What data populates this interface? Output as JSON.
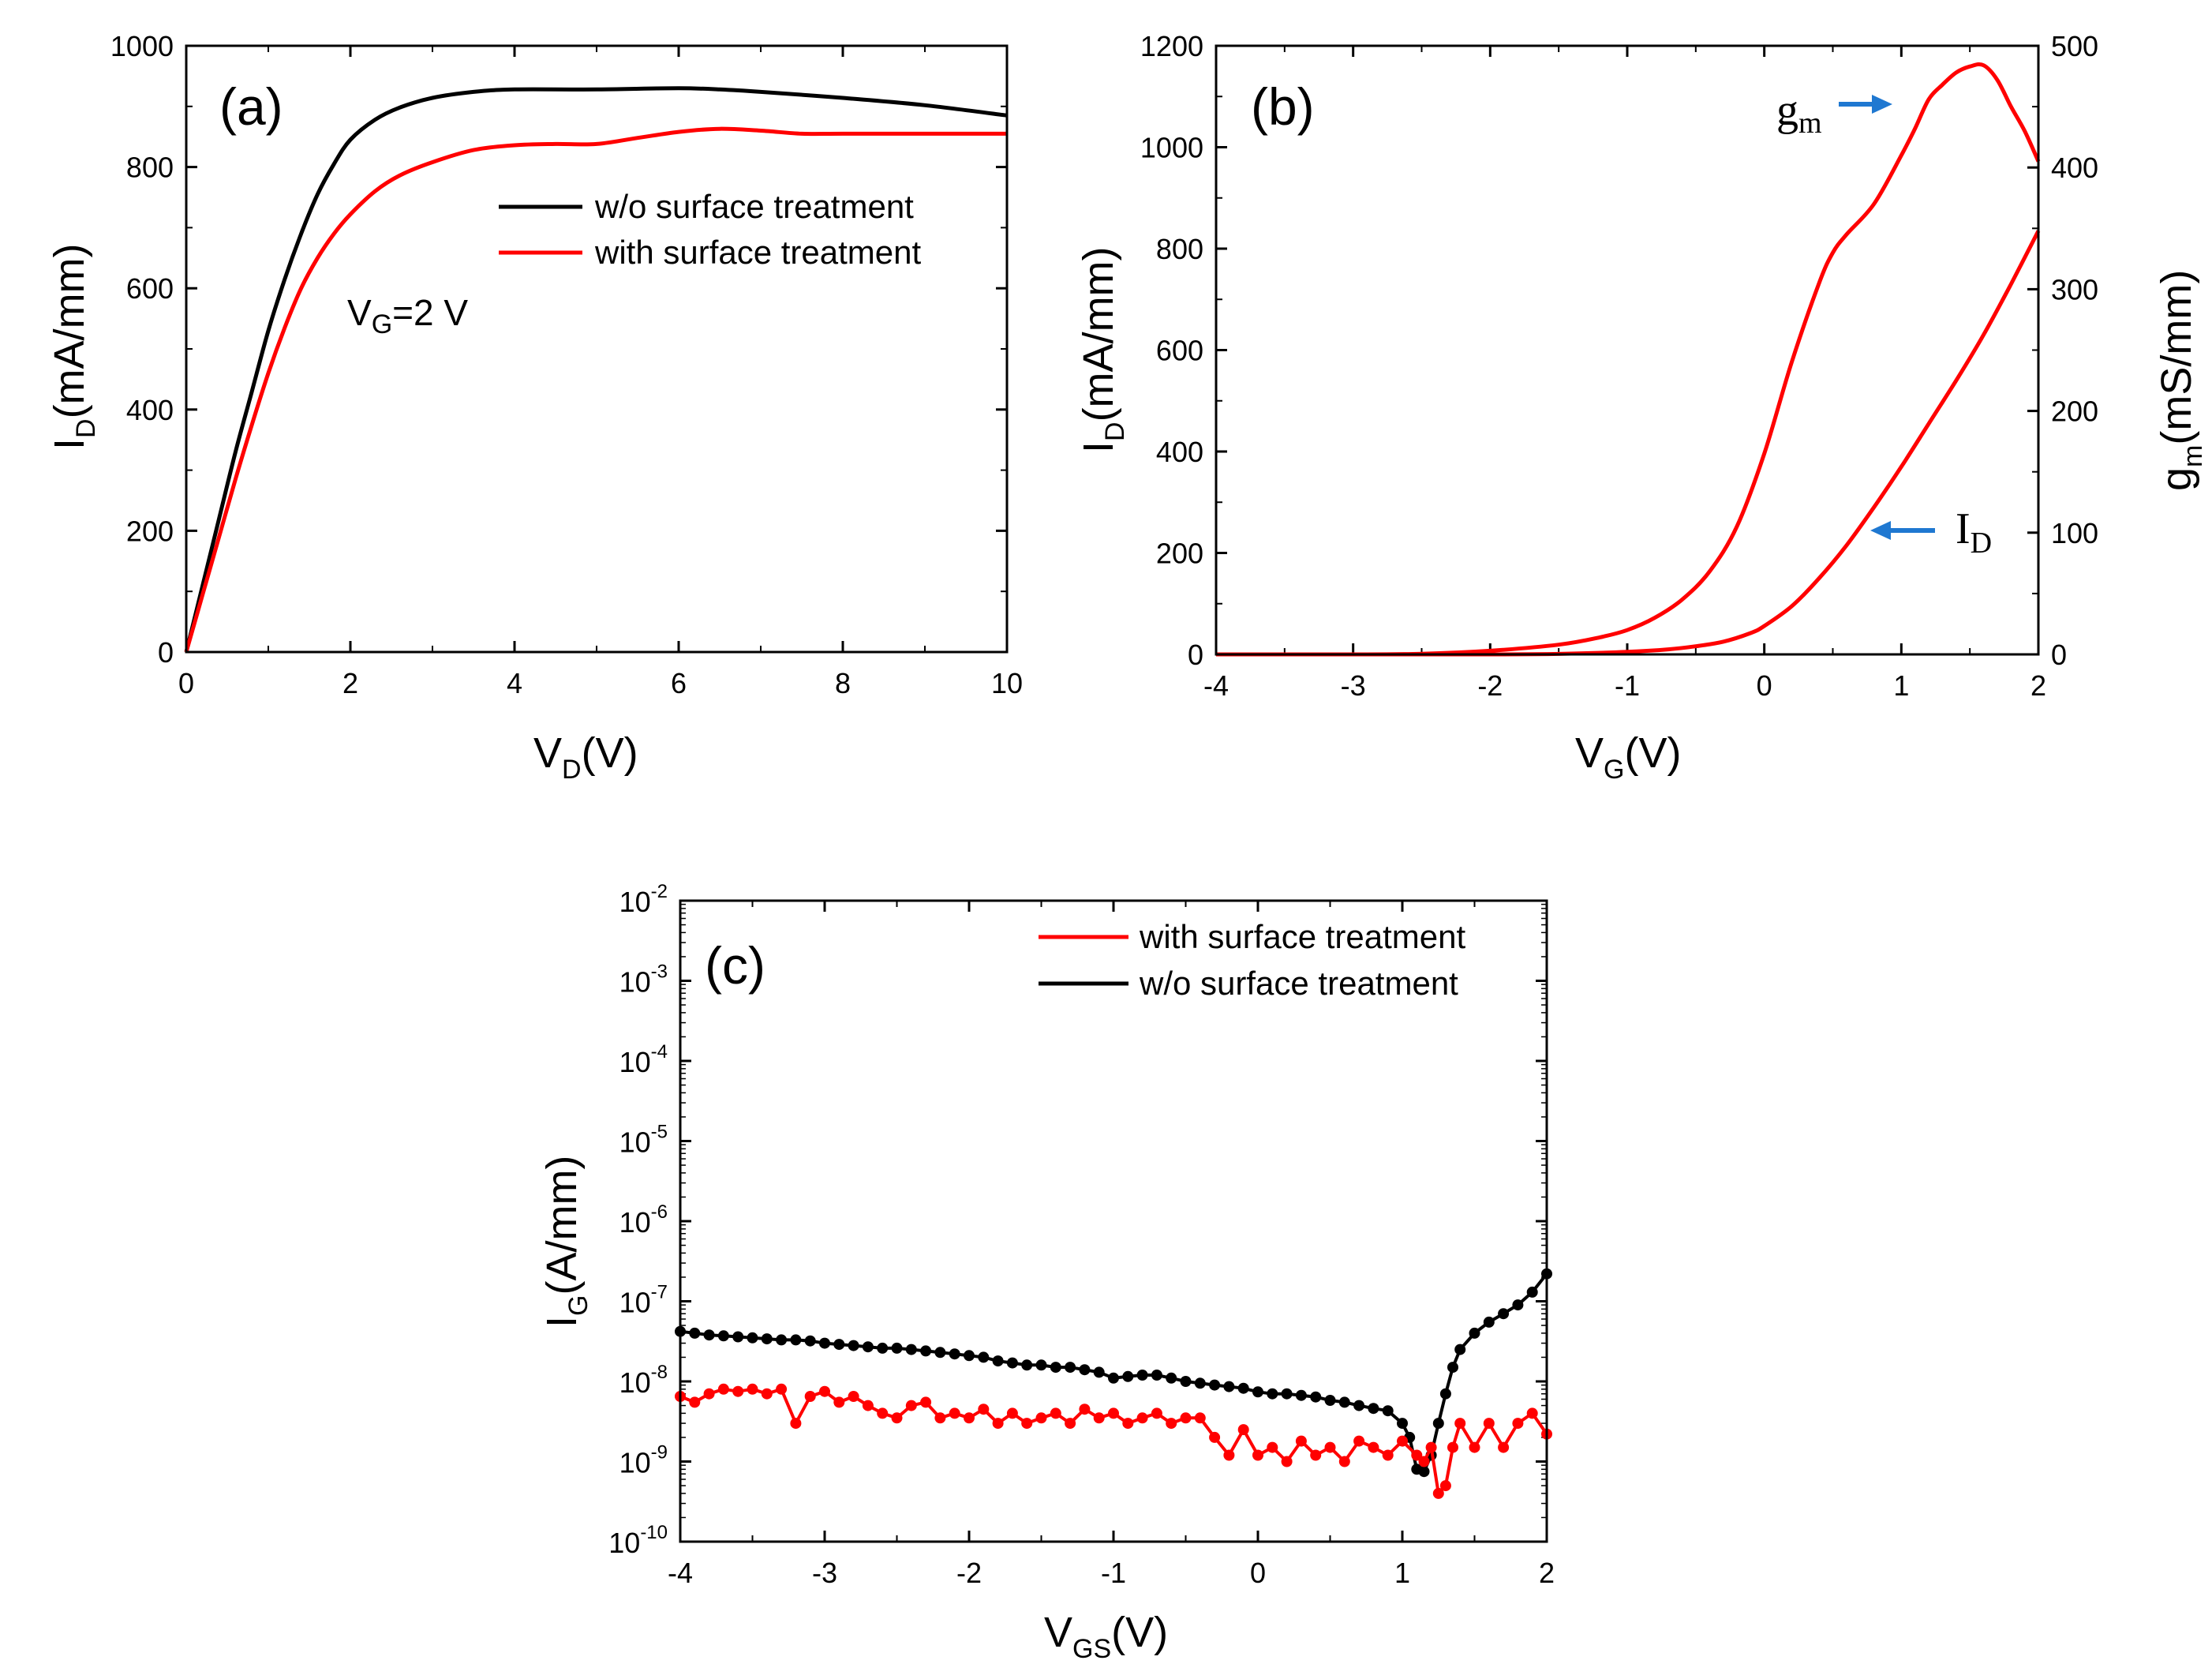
{
  "colors": {
    "black": "#000000",
    "red": "#ff0000",
    "arrow": "#1f78d1"
  },
  "chart_data": [
    {
      "id": "a",
      "type": "line",
      "panel_label": "(a)",
      "xlabel": {
        "main": "V",
        "sub": "D",
        "unit": "(V)"
      },
      "ylabel": {
        "main": "I",
        "sub": "D",
        "unit": "(mA/mm)"
      },
      "xlim": [
        0,
        10
      ],
      "ylim": [
        0,
        1000
      ],
      "xticks": [
        "0",
        "2",
        "4",
        "6",
        "8",
        "10"
      ],
      "yticks": [
        "0",
        "200",
        "400",
        "600",
        "800",
        "1000"
      ],
      "annotation": {
        "main": "V",
        "sub": "G",
        "rest": "=2 V"
      },
      "legend": [
        {
          "label": "w/o surface treatment",
          "color": "#000000"
        },
        {
          "label": "with surface treatment",
          "color": "#ff0000"
        }
      ],
      "series": [
        {
          "name": "w/o surface treatment",
          "color": "#000000",
          "x": [
            0,
            0.2,
            0.4,
            0.6,
            0.8,
            1.0,
            1.2,
            1.4,
            1.6,
            1.8,
            2.0,
            2.3,
            2.6,
            3.0,
            3.5,
            4.0,
            5.0,
            6.0,
            6.5,
            7.0,
            8.0,
            9.0,
            10.0
          ],
          "y": [
            0,
            110,
            220,
            330,
            430,
            530,
            615,
            690,
            755,
            805,
            845,
            878,
            898,
            914,
            924,
            928,
            928,
            930,
            928,
            924,
            914,
            902,
            885
          ]
        },
        {
          "name": "with surface treatment",
          "color": "#ff0000",
          "x": [
            0,
            0.2,
            0.4,
            0.6,
            0.8,
            1.0,
            1.2,
            1.4,
            1.6,
            1.8,
            2.0,
            2.3,
            2.6,
            3.0,
            3.5,
            4.0,
            4.5,
            5.0,
            5.5,
            6.0,
            6.5,
            7.0,
            7.5,
            8.0,
            9.0,
            10.0
          ],
          "y": [
            0,
            95,
            190,
            285,
            375,
            460,
            535,
            600,
            650,
            690,
            722,
            760,
            786,
            808,
            828,
            836,
            838,
            838,
            848,
            858,
            863,
            860,
            855,
            855,
            855,
            855
          ]
        }
      ]
    },
    {
      "id": "b",
      "type": "line",
      "panel_label": "(b)",
      "xlabel": {
        "main": "V",
        "sub": "G",
        "unit": "(V)"
      },
      "ylabel": {
        "main": "I",
        "sub": "D",
        "unit": "(mA/mm)"
      },
      "y2label": {
        "main": "g",
        "sub": "m",
        "unit": "(mS/mm)"
      },
      "xlim": [
        -4,
        2
      ],
      "ylim": [
        0,
        1200
      ],
      "y2lim": [
        0,
        500
      ],
      "xticks": [
        "-4",
        "-3",
        "-2",
        "-1",
        "0",
        "1",
        "2"
      ],
      "yticks": [
        "0",
        "200",
        "400",
        "600",
        "800",
        "1000",
        "1200"
      ],
      "y2ticks": [
        "0",
        "100",
        "200",
        "300",
        "400",
        "500"
      ],
      "annotations": [
        {
          "main": "g",
          "sub": "m"
        },
        {
          "main": "I",
          "sub": "D"
        }
      ],
      "series": [
        {
          "name": "I_D",
          "axis": "left",
          "color": "#ff0000",
          "x": [
            -4,
            -3,
            -2,
            -1.5,
            -1,
            -0.7,
            -0.5,
            -0.3,
            -0.1,
            0,
            0.2,
            0.4,
            0.6,
            0.8,
            1.0,
            1.2,
            1.4,
            1.6,
            1.8,
            2.0
          ],
          "y": [
            0,
            0,
            0,
            1,
            5,
            10,
            16,
            25,
            42,
            56,
            95,
            150,
            215,
            290,
            370,
            455,
            540,
            630,
            730,
            835
          ]
        },
        {
          "name": "g_m",
          "axis": "right",
          "color": "#ff0000",
          "x": [
            -4,
            -3,
            -2.5,
            -2,
            -1.5,
            -1.2,
            -1,
            -0.8,
            -0.6,
            -0.4,
            -0.2,
            0,
            0.2,
            0.4,
            0.5,
            0.6,
            0.8,
            1.0,
            1.1,
            1.2,
            1.3,
            1.4,
            1.5,
            1.6,
            1.7,
            1.8,
            1.9,
            2.0
          ],
          "y": [
            0,
            0,
            0.5,
            3,
            8,
            14,
            20,
            30,
            45,
            68,
            105,
            165,
            240,
            305,
            330,
            345,
            370,
            410,
            432,
            456,
            468,
            478,
            483,
            484,
            472,
            450,
            430,
            405
          ]
        }
      ]
    },
    {
      "id": "c",
      "type": "line",
      "scale": "log",
      "panel_label": "(c)",
      "xlabel": {
        "main": "V",
        "sub": "GS",
        "unit": "(V)"
      },
      "ylabel": {
        "main": "I",
        "sub": "G",
        "unit": "(A/mm)"
      },
      "xlim": [
        -4,
        2
      ],
      "ylim_exp": [
        -10,
        -2
      ],
      "xticks": [
        "-4",
        "-3",
        "-2",
        "-1",
        "0",
        "1",
        "2"
      ],
      "yticks": [
        {
          "base": "10",
          "exp": "-2"
        },
        {
          "base": "10",
          "exp": "-3"
        },
        {
          "base": "10",
          "exp": "-4"
        },
        {
          "base": "10",
          "exp": "-5"
        },
        {
          "base": "10",
          "exp": "-6"
        },
        {
          "base": "10",
          "exp": "-7"
        },
        {
          "base": "10",
          "exp": "-8"
        },
        {
          "base": "10",
          "exp": "-9"
        },
        {
          "base": "10",
          "exp": "-10"
        }
      ],
      "legend": [
        {
          "label": "with surface treatment",
          "color": "#ff0000"
        },
        {
          "label": "w/o surface treatment",
          "color": "#000000"
        }
      ],
      "series": [
        {
          "name": "w/o surface treatment",
          "color": "#000000",
          "x": [
            -4,
            -3.9,
            -3.8,
            -3.7,
            -3.6,
            -3.5,
            -3.4,
            -3.3,
            -3.2,
            -3.1,
            -3,
            -2.9,
            -2.8,
            -2.7,
            -2.6,
            -2.5,
            -2.4,
            -2.3,
            -2.2,
            -2.1,
            -2,
            -1.9,
            -1.8,
            -1.7,
            -1.6,
            -1.5,
            -1.4,
            -1.3,
            -1.2,
            -1.1,
            -1,
            -0.9,
            -0.8,
            -0.7,
            -0.6,
            -0.5,
            -0.4,
            -0.3,
            -0.2,
            -0.1,
            0,
            0.1,
            0.2,
            0.3,
            0.4,
            0.5,
            0.6,
            0.7,
            0.8,
            0.9,
            1.0,
            1.05,
            1.1,
            1.15,
            1.2,
            1.25,
            1.3,
            1.35,
            1.4,
            1.5,
            1.6,
            1.7,
            1.8,
            1.9,
            2.0
          ],
          "y": [
            4.2e-08,
            4e-08,
            3.8e-08,
            3.7e-08,
            3.6e-08,
            3.5e-08,
            3.4e-08,
            3.3e-08,
            3.3e-08,
            3.2e-08,
            3e-08,
            2.9e-08,
            2.8e-08,
            2.7e-08,
            2.6e-08,
            2.6e-08,
            2.5e-08,
            2.4e-08,
            2.3e-08,
            2.2e-08,
            2.1e-08,
            2e-08,
            1.8e-08,
            1.7e-08,
            1.6e-08,
            1.6e-08,
            1.5e-08,
            1.5e-08,
            1.4e-08,
            1.3e-08,
            1.1e-08,
            1.15e-08,
            1.2e-08,
            1.2e-08,
            1.1e-08,
            1e-08,
            9.5e-09,
            9e-09,
            8.6e-09,
            8.2e-09,
            7.4e-09,
            7e-09,
            7e-09,
            6.7e-09,
            6.4e-09,
            5.8e-09,
            5.5e-09,
            5e-09,
            4.6e-09,
            4.3e-09,
            3e-09,
            2e-09,
            8e-10,
            7.5e-10,
            1.2e-09,
            3e-09,
            7e-09,
            1.5e-08,
            2.5e-08,
            4e-08,
            5.5e-08,
            7e-08,
            9e-08,
            1.3e-07,
            2.2e-07
          ]
        },
        {
          "name": "with surface treatment",
          "color": "#ff0000",
          "x": [
            -4,
            -3.9,
            -3.8,
            -3.7,
            -3.6,
            -3.5,
            -3.4,
            -3.3,
            -3.2,
            -3.1,
            -3,
            -2.9,
            -2.8,
            -2.7,
            -2.6,
            -2.5,
            -2.4,
            -2.3,
            -2.2,
            -2.1,
            -2,
            -1.9,
            -1.8,
            -1.7,
            -1.6,
            -1.5,
            -1.4,
            -1.3,
            -1.2,
            -1.1,
            -1,
            -0.9,
            -0.8,
            -0.7,
            -0.6,
            -0.5,
            -0.4,
            -0.3,
            -0.2,
            -0.1,
            0,
            0.1,
            0.2,
            0.3,
            0.4,
            0.5,
            0.6,
            0.7,
            0.8,
            0.9,
            1.0,
            1.1,
            1.15,
            1.2,
            1.25,
            1.3,
            1.35,
            1.4,
            1.5,
            1.6,
            1.7,
            1.8,
            1.9,
            2.0
          ],
          "y": [
            6.5e-09,
            5.5e-09,
            7e-09,
            8e-09,
            7.5e-09,
            8e-09,
            7e-09,
            8e-09,
            3e-09,
            6.5e-09,
            7.5e-09,
            5.5e-09,
            6.5e-09,
            5e-09,
            4e-09,
            3.5e-09,
            5e-09,
            5.5e-09,
            3.5e-09,
            4e-09,
            3.5e-09,
            4.5e-09,
            3e-09,
            4e-09,
            3e-09,
            3.5e-09,
            4e-09,
            3e-09,
            4.5e-09,
            3.5e-09,
            4e-09,
            3e-09,
            3.5e-09,
            4e-09,
            3e-09,
            3.5e-09,
            3.5e-09,
            2e-09,
            1.2e-09,
            2.5e-09,
            1.2e-09,
            1.5e-09,
            1e-09,
            1.8e-09,
            1.2e-09,
            1.5e-09,
            1e-09,
            1.8e-09,
            1.5e-09,
            1.2e-09,
            1.8e-09,
            1.2e-09,
            1e-09,
            1.5e-09,
            4e-10,
            5e-10,
            1.5e-09,
            3e-09,
            1.5e-09,
            3e-09,
            1.5e-09,
            3e-09,
            4e-09,
            2.2e-09
          ]
        }
      ]
    }
  ]
}
